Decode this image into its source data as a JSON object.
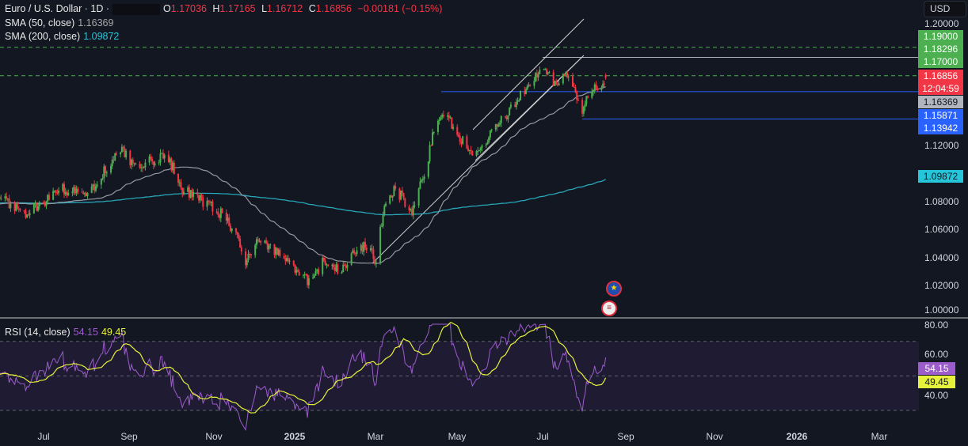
{
  "header": {
    "symbol": "Euro / U.S. Dollar · 1D ·",
    "o_label": "O",
    "o": "1.17036",
    "h_label": "H",
    "h": "1.17165",
    "l_label": "L",
    "l": "1.16712",
    "c_label": "C",
    "c": "1.16856",
    "change": "−0.00181 (−0.15%)"
  },
  "sma50": {
    "label": "SMA (50, close)",
    "value": "1.16369"
  },
  "sma200": {
    "label": "SMA (200, close)",
    "value": "1.09872"
  },
  "rsi": {
    "label": "RSI (14, close)",
    "value": "54.15",
    "ma_value": "49.45"
  },
  "currency_button": "USD",
  "price_axis": [
    "1.20000",
    "1.12000",
    "1.08000",
    "1.06000",
    "1.04000",
    "1.02000",
    "1.00000"
  ],
  "price_tags": [
    {
      "text": "1.19000",
      "color": "#4caf50"
    },
    {
      "text": "1.18296",
      "color": "#4caf50"
    },
    {
      "text": "1.17000",
      "color": "#4caf50"
    },
    {
      "text": "1.16856",
      "color": "#f23645"
    },
    {
      "text": "12:04:59",
      "color": "#f23645"
    },
    {
      "text": "1.16369",
      "color": "#b2b5be"
    },
    {
      "text": "1.15871",
      "color": "#2962ff"
    },
    {
      "text": "1.13942",
      "color": "#2962ff"
    },
    {
      "text": "1.09872",
      "color": "#26c6da"
    }
  ],
  "rsi_axis": [
    "80.00",
    "60.00",
    "40.00"
  ],
  "rsi_tags": [
    {
      "text": "54.15",
      "color": "#9c5ccc"
    },
    {
      "text": "49.45",
      "color": "#e6f23a"
    }
  ],
  "time_axis": [
    {
      "t": "Jul"
    },
    {
      "t": "Sep"
    },
    {
      "t": "Nov"
    },
    {
      "t": "2025",
      "bold": true
    },
    {
      "t": "Mar"
    },
    {
      "t": "May"
    },
    {
      "t": "Jul"
    },
    {
      "t": "Sep"
    },
    {
      "t": "Nov"
    },
    {
      "t": "2026",
      "bold": true
    },
    {
      "t": "Mar"
    }
  ],
  "events": [
    "eu-flag-icon",
    "us-flag-icon"
  ],
  "chart_data": {
    "type": "candlestick",
    "note_values": "approximate close path keypoints",
    "close_path": [
      [
        "2024-05-30",
        1.085
      ],
      [
        "2024-06-17",
        1.072
      ],
      [
        "2024-07-15",
        1.09
      ],
      [
        "2024-08-02",
        1.085
      ],
      [
        "2024-08-19",
        1.11
      ],
      [
        "2024-08-25",
        1.118
      ],
      [
        "2024-09-08",
        1.105
      ],
      [
        "2024-09-28",
        1.115
      ],
      [
        "2024-10-10",
        1.09
      ],
      [
        "2024-10-27",
        1.08
      ],
      [
        "2024-11-08",
        1.072
      ],
      [
        "2024-11-19",
        1.055
      ],
      [
        "2024-11-25",
        1.04
      ],
      [
        "2024-12-06",
        1.055
      ],
      [
        "2024-12-24",
        1.04
      ],
      [
        "2025-01-01",
        1.03
      ],
      [
        "2025-01-10",
        1.025
      ],
      [
        "2025-01-22",
        1.04
      ],
      [
        "2025-02-02",
        1.03
      ],
      [
        "2025-02-08",
        1.04
      ],
      [
        "2025-02-19",
        1.05
      ],
      [
        "2025-02-28",
        1.04
      ],
      [
        "2025-03-06",
        1.08
      ],
      [
        "2025-03-14",
        1.09
      ],
      [
        "2025-03-26",
        1.075
      ],
      [
        "2025-04-04",
        1.1
      ],
      [
        "2025-04-12",
        1.135
      ],
      [
        "2025-04-18",
        1.145
      ],
      [
        "2025-04-27",
        1.13
      ],
      [
        "2025-05-11",
        1.115
      ],
      [
        "2025-05-23",
        1.13
      ],
      [
        "2025-06-09",
        1.15
      ],
      [
        "2025-06-20",
        1.165
      ],
      [
        "2025-06-29",
        1.175
      ],
      [
        "2025-07-08",
        1.165
      ],
      [
        "2025-07-19",
        1.17
      ],
      [
        "2025-07-28",
        1.145
      ],
      [
        "2025-07-31",
        1.155
      ],
      [
        "2025-08-06",
        1.16
      ],
      [
        "2025-08-14",
        1.16856
      ]
    ],
    "ylim": [
      1.0,
      1.2
    ],
    "horizontal_levels": [
      {
        "price": 1.19,
        "style": "dashed",
        "color": "#4caf50"
      },
      {
        "price": 1.17,
        "style": "dashed",
        "color": "#4caf50"
      },
      {
        "price": 1.18296,
        "color": "#b2b5be"
      },
      {
        "price": 1.15871,
        "color": "#2962ff"
      },
      {
        "price": 1.13942,
        "color": "#2962ff"
      }
    ],
    "colors": {
      "up": "#4caf50",
      "down": "#f23645",
      "sma50": "#9598a1",
      "sma200": "#26a6b8",
      "rsi": "#9c5ccc",
      "rsi_ma": "#e6f23a"
    },
    "rsi_levels": [
      70,
      50,
      30
    ],
    "rsi_ylim": [
      20,
      80
    ]
  }
}
